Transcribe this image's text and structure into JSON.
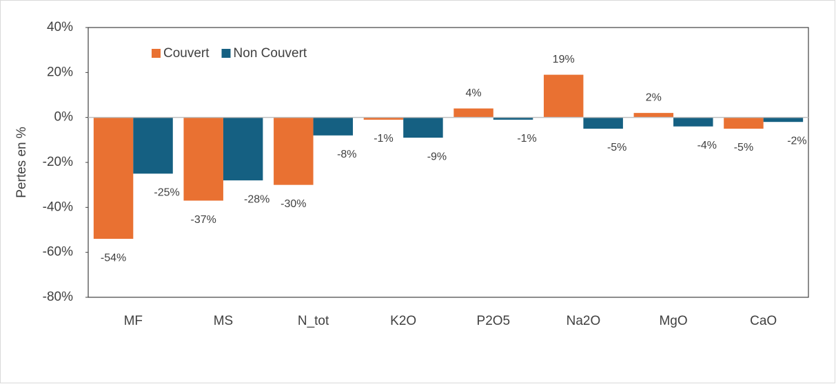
{
  "chart_data": {
    "type": "bar",
    "y_label": "Pertes en %",
    "categories": [
      "MF",
      "MS",
      "N_tot",
      "K2O",
      "P2O5",
      "Na2O",
      "MgO",
      "CaO"
    ],
    "series": [
      {
        "name": "Couvert",
        "color": "#e97132",
        "values": [
          -54,
          -37,
          -30,
          -1,
          4,
          19,
          2,
          -5
        ],
        "value_labels": [
          "-54%",
          "-37%",
          "-30%",
          "-1%",
          "4%",
          "19%",
          "2%",
          "-5%"
        ]
      },
      {
        "name": "Non Couvert",
        "color": "#156082",
        "values": [
          -25,
          -28,
          -8,
          -9,
          -1,
          -5,
          -4,
          -2
        ],
        "value_labels": [
          "-25%",
          "-28%",
          "-8%",
          "-9%",
          "-1%",
          "-5%",
          "-4%",
          "-2%"
        ]
      }
    ],
    "ylim": [
      -80,
      40
    ],
    "yticks": [
      {
        "value": -80,
        "label": "-80%"
      },
      {
        "value": -60,
        "label": "-60%"
      },
      {
        "value": -40,
        "label": "-40%"
      },
      {
        "value": -20,
        "label": "-20%"
      },
      {
        "value": 0,
        "label": "0%"
      },
      {
        "value": 20,
        "label": "20%"
      },
      {
        "value": 40,
        "label": "40%"
      }
    ],
    "legend": "top-left"
  }
}
